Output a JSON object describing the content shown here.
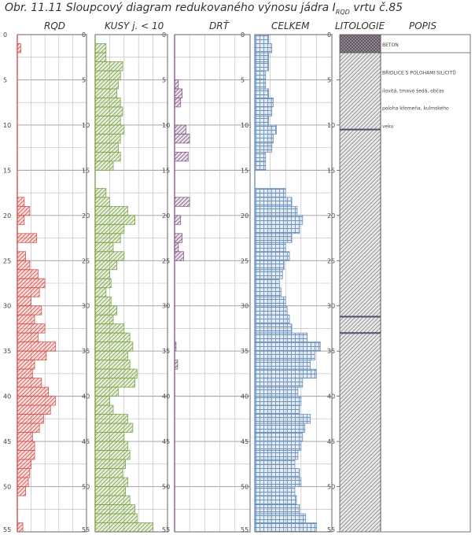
{
  "caption": {
    "prefix": "Obr. 11.11 Sloupcový diagram redukovaného výnosu jádra I",
    "subscript": "RQD",
    "suffix": " vrtu č.85"
  },
  "headers": {
    "rqd": "RQD",
    "kusy": "KUSY j. < 10",
    "drt": "DRŤ",
    "celkem": "CELKEM",
    "litologie": "LITOLOGIE",
    "popis": "POPIS"
  },
  "colors": {
    "rqd": "#d9534f",
    "kusy": "#7fa54a",
    "drt": "#8a5f8a",
    "celkem": "#6f93bd",
    "grid": "#b9b9b9",
    "axis": "#666666"
  },
  "chart_data": {
    "type": "bar",
    "orientation": "horizontal",
    "depth_range": [
      0,
      55
    ],
    "depth_ticks": [
      "0",
      "5",
      "10",
      "15",
      "20",
      "25",
      "30",
      "35",
      "40",
      "45",
      "50",
      "55"
    ],
    "interval": 1,
    "series": [
      {
        "key": "rqd",
        "name": "RQD",
        "max": 100,
        "values": [
          0,
          5,
          0,
          0,
          0,
          0,
          0,
          0,
          0,
          0,
          0,
          0,
          0,
          0,
          0,
          0,
          0,
          0,
          10,
          18,
          10,
          0,
          28,
          0,
          12,
          18,
          30,
          40,
          32,
          20,
          35,
          25,
          40,
          30,
          55,
          42,
          25,
          22,
          35,
          45,
          55,
          48,
          38,
          32,
          22,
          25,
          25,
          20,
          18,
          16,
          12,
          0,
          0,
          0,
          8
        ]
      },
      {
        "key": "kusy",
        "name": "KUSY j. < 10",
        "max": 100,
        "values": [
          0,
          15,
          15,
          38,
          35,
          32,
          30,
          35,
          38,
          35,
          40,
          35,
          32,
          35,
          25,
          0,
          0,
          15,
          20,
          45,
          55,
          40,
          35,
          25,
          40,
          30,
          20,
          22,
          15,
          22,
          30,
          25,
          40,
          48,
          52,
          45,
          48,
          58,
          55,
          32,
          20,
          25,
          45,
          52,
          40,
          45,
          48,
          42,
          38,
          45,
          42,
          48,
          55,
          58,
          80
        ]
      },
      {
        "key": "drt",
        "name": "DRŤ",
        "max": 100,
        "values": [
          0,
          0,
          0,
          0,
          0,
          5,
          10,
          8,
          0,
          0,
          15,
          20,
          0,
          18,
          0,
          0,
          0,
          0,
          20,
          0,
          8,
          0,
          10,
          5,
          12,
          0,
          0,
          0,
          0,
          0,
          0,
          0,
          0,
          0,
          2,
          0,
          4,
          0,
          0,
          0,
          0,
          0,
          0,
          0,
          0,
          0,
          0,
          0,
          0,
          0,
          0,
          0,
          0,
          0,
          0
        ]
      },
      {
        "key": "celkem",
        "name": "CELKEM",
        "max": 100,
        "values": [
          18,
          22,
          18,
          18,
          14,
          14,
          18,
          24,
          22,
          18,
          28,
          24,
          22,
          14,
          14,
          0,
          0,
          40,
          48,
          55,
          62,
          58,
          48,
          40,
          45,
          38,
          36,
          32,
          34,
          40,
          42,
          45,
          48,
          68,
          85,
          78,
          72,
          80,
          62,
          56,
          60,
          58,
          72,
          65,
          62,
          60,
          56,
          52,
          58,
          60,
          52,
          54,
          58,
          66,
          80
        ]
      }
    ],
    "lithology": [
      {
        "from": 0,
        "to": 2,
        "label": "BETON",
        "pattern": "cross-hatch"
      },
      {
        "from": 2,
        "to": 55,
        "label": "BŘIDLICE S POLOHAMI SILICITŮ",
        "pattern": "hatch"
      }
    ],
    "lithology_lines": [
      10.5,
      31.2,
      33.0
    ],
    "description": [
      "BETON",
      "BŘIDLICE S POLOHAMI SILICITŮ",
      "ilovitá, tmavo šedá, občas",
      "poloha křemeňa, kulmského",
      "veku"
    ]
  }
}
